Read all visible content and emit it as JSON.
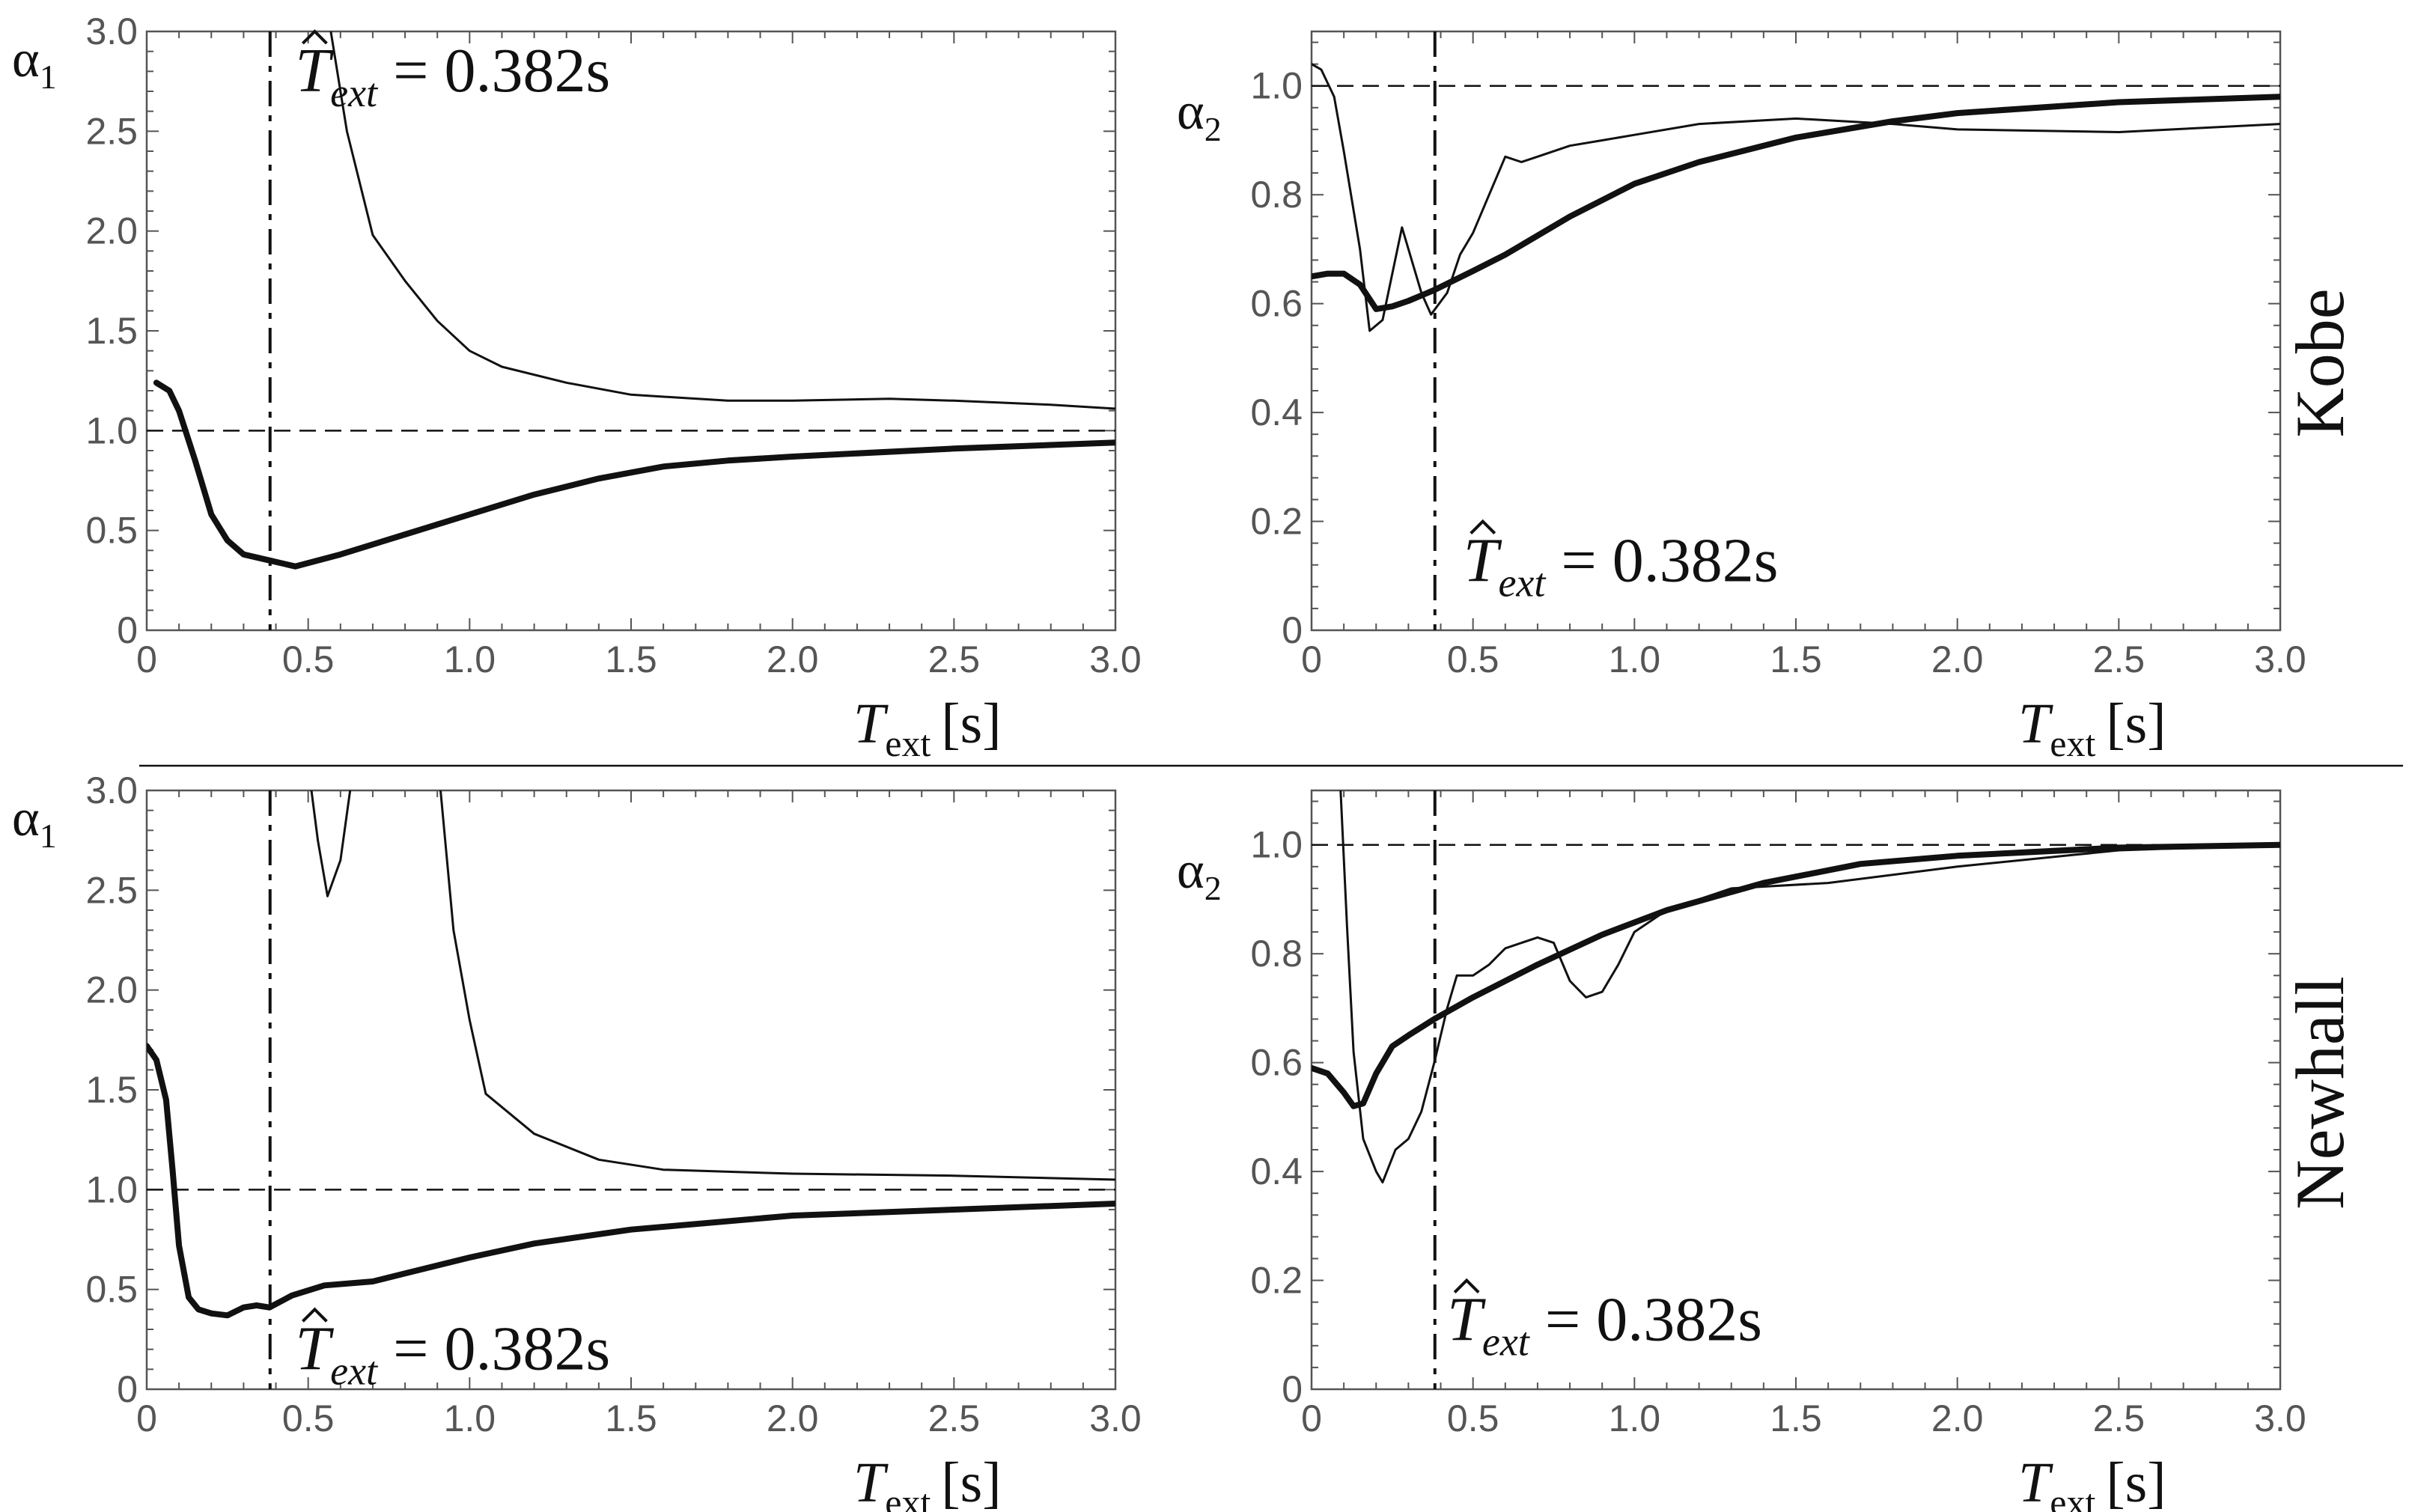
{
  "separator": true,
  "colors": {
    "curve": "#111111",
    "axis": "#555555",
    "reference": "#111111"
  },
  "rows": [
    {
      "label": "Kobe"
    },
    {
      "label": "Newhall"
    }
  ],
  "chart_data": [
    {
      "id": "kobe-alpha1",
      "type": "line",
      "row": "Kobe",
      "ylabel_sym": "α",
      "ylabel_sub": "1",
      "xlabel_sym": "T",
      "xlabel_sub": "ext",
      "xlabel_unit": "[s]",
      "xlim": [
        0,
        3.0
      ],
      "ylim": [
        0,
        3.0
      ],
      "xticks": [
        "0",
        "0.5",
        "1.0",
        "1.5",
        "2.0",
        "2.5",
        "3.0"
      ],
      "xtick_values": [
        0,
        0.5,
        1.0,
        1.5,
        2.0,
        2.5,
        3.0
      ],
      "yticks": [
        "0",
        "0.5",
        "1.0",
        "1.5",
        "2.0",
        "2.5",
        "3.0"
      ],
      "ytick_values": [
        0,
        0.5,
        1.0,
        1.5,
        2.0,
        2.5,
        3.0
      ],
      "hline": 1.0,
      "vline": 0.382,
      "annotation": {
        "sym": "T",
        "sub": "ext",
        "text": " = 0.382s",
        "anchor_x": 0.46,
        "anchor_y": 2.7
      },
      "series": [
        {
          "name": "thin",
          "width": 3,
          "x": [
            0.57,
            0.62,
            0.7,
            0.8,
            0.9,
            1.0,
            1.1,
            1.3,
            1.5,
            1.8,
            2.0,
            2.3,
            2.5,
            2.8,
            3.0
          ],
          "y": [
            3.0,
            2.5,
            1.98,
            1.75,
            1.55,
            1.4,
            1.32,
            1.24,
            1.18,
            1.15,
            1.15,
            1.16,
            1.15,
            1.13,
            1.11
          ]
        },
        {
          "name": "thick",
          "width": 8,
          "x": [
            0.03,
            0.07,
            0.1,
            0.15,
            0.2,
            0.25,
            0.3,
            0.38,
            0.46,
            0.6,
            0.8,
            1.0,
            1.2,
            1.4,
            1.6,
            1.8,
            2.0,
            2.5,
            3.0
          ],
          "y": [
            1.24,
            1.2,
            1.1,
            0.85,
            0.58,
            0.45,
            0.38,
            0.35,
            0.32,
            0.38,
            0.48,
            0.58,
            0.68,
            0.76,
            0.82,
            0.85,
            0.87,
            0.91,
            0.94
          ]
        }
      ]
    },
    {
      "id": "kobe-alpha2",
      "type": "line",
      "row": "Kobe",
      "ylabel_sym": "α",
      "ylabel_sub": "2",
      "xlabel_sym": "T",
      "xlabel_sub": "ext",
      "xlabel_unit": "[s]",
      "xlim": [
        0,
        3.0
      ],
      "ylim": [
        0,
        1.1
      ],
      "xticks": [
        "0",
        "0.5",
        "1.0",
        "1.5",
        "2.0",
        "2.5",
        "3.0"
      ],
      "xtick_values": [
        0,
        0.5,
        1.0,
        1.5,
        2.0,
        2.5,
        3.0
      ],
      "yticks": [
        "0",
        "0.2",
        "0.4",
        "0.6",
        "0.8",
        "1.0"
      ],
      "ytick_values": [
        0,
        0.2,
        0.4,
        0.6,
        0.8,
        1.0
      ],
      "hline": 1.0,
      "vline": 0.382,
      "annotation": {
        "sym": "T",
        "sub": "ext",
        "text": " = 0.382s",
        "anchor_x": 0.47,
        "anchor_y": 0.09
      },
      "series": [
        {
          "name": "thin",
          "width": 3,
          "x": [
            0.0,
            0.03,
            0.07,
            0.1,
            0.15,
            0.18,
            0.22,
            0.28,
            0.34,
            0.37,
            0.42,
            0.46,
            0.5,
            0.55,
            0.6,
            0.65,
            0.7,
            0.8,
            0.9,
            1.0,
            1.2,
            1.5,
            1.8,
            2.0,
            2.5,
            3.0
          ],
          "y": [
            1.04,
            1.03,
            0.98,
            0.88,
            0.7,
            0.55,
            0.57,
            0.74,
            0.62,
            0.58,
            0.62,
            0.69,
            0.73,
            0.8,
            0.87,
            0.86,
            0.87,
            0.89,
            0.9,
            0.91,
            0.93,
            0.94,
            0.93,
            0.92,
            0.915,
            0.93
          ]
        },
        {
          "name": "thick",
          "width": 8,
          "x": [
            0.0,
            0.05,
            0.1,
            0.15,
            0.2,
            0.25,
            0.3,
            0.38,
            0.5,
            0.6,
            0.8,
            1.0,
            1.2,
            1.5,
            1.8,
            2.0,
            2.5,
            3.0
          ],
          "y": [
            0.65,
            0.655,
            0.655,
            0.635,
            0.59,
            0.595,
            0.605,
            0.625,
            0.66,
            0.69,
            0.76,
            0.82,
            0.86,
            0.905,
            0.935,
            0.95,
            0.97,
            0.98
          ]
        }
      ]
    },
    {
      "id": "newhall-alpha1",
      "type": "line",
      "row": "Newhall",
      "ylabel_sym": "α",
      "ylabel_sub": "1",
      "xlabel_sym": "T",
      "xlabel_sub": "ext",
      "xlabel_unit": "[s]",
      "xlim": [
        0,
        3.0
      ],
      "ylim": [
        0,
        3.0
      ],
      "xticks": [
        "0",
        "0.5",
        "1.0",
        "1.5",
        "2.0",
        "2.5",
        "3.0"
      ],
      "xtick_values": [
        0,
        0.5,
        1.0,
        1.5,
        2.0,
        2.5,
        3.0
      ],
      "yticks": [
        "0",
        "0.5",
        "1.0",
        "1.5",
        "2.0",
        "2.5",
        "3.0"
      ],
      "ytick_values": [
        0,
        0.5,
        1.0,
        1.5,
        2.0,
        2.5,
        3.0
      ],
      "hline": 1.0,
      "vline": 0.382,
      "annotation": {
        "sym": "T",
        "sub": "ext",
        "text": " = 0.382s",
        "anchor_x": 0.46,
        "anchor_y": 0.1
      },
      "series": [
        {
          "name": "thin-left",
          "width": 3,
          "x": [
            0.51,
            0.53,
            0.56,
            0.6,
            0.63
          ],
          "y": [
            3.0,
            2.75,
            2.47,
            2.65,
            3.0
          ]
        },
        {
          "name": "thin-right",
          "width": 3,
          "x": [
            0.91,
            0.95,
            1.0,
            1.05,
            1.2,
            1.4,
            1.6,
            2.0,
            2.5,
            3.0
          ],
          "y": [
            3.0,
            2.3,
            1.85,
            1.48,
            1.28,
            1.15,
            1.1,
            1.08,
            1.07,
            1.05
          ]
        },
        {
          "name": "thick",
          "width": 8,
          "x": [
            0.0,
            0.03,
            0.06,
            0.08,
            0.1,
            0.13,
            0.16,
            0.2,
            0.25,
            0.3,
            0.34,
            0.38,
            0.45,
            0.55,
            0.7,
            0.8,
            1.0,
            1.2,
            1.5,
            2.0,
            2.5,
            3.0
          ],
          "y": [
            1.72,
            1.65,
            1.45,
            1.1,
            0.72,
            0.46,
            0.4,
            0.38,
            0.37,
            0.41,
            0.42,
            0.41,
            0.47,
            0.52,
            0.54,
            0.58,
            0.66,
            0.73,
            0.8,
            0.87,
            0.9,
            0.93
          ]
        }
      ]
    },
    {
      "id": "newhall-alpha2",
      "type": "line",
      "row": "Newhall",
      "ylabel_sym": "α",
      "ylabel_sub": "2",
      "xlabel_sym": "T",
      "xlabel_sub": "ext",
      "xlabel_unit": "[s]",
      "xlim": [
        0,
        3.0
      ],
      "ylim": [
        0,
        1.1
      ],
      "xticks": [
        "0",
        "0.5",
        "1.0",
        "1.5",
        "2.0",
        "2.5",
        "3.0"
      ],
      "xtick_values": [
        0,
        0.5,
        1.0,
        1.5,
        2.0,
        2.5,
        3.0
      ],
      "yticks": [
        "0",
        "0.2",
        "0.4",
        "0.6",
        "0.8",
        "1.0"
      ],
      "ytick_values": [
        0,
        0.2,
        0.4,
        0.6,
        0.8,
        1.0
      ],
      "hline": 1.0,
      "vline": 0.382,
      "annotation": {
        "sym": "T",
        "sub": "ext",
        "text": " = 0.382s",
        "anchor_x": 0.42,
        "anchor_y": 0.09
      },
      "series": [
        {
          "name": "thin",
          "width": 3,
          "x": [
            0.09,
            0.11,
            0.13,
            0.16,
            0.2,
            0.22,
            0.26,
            0.3,
            0.34,
            0.38,
            0.42,
            0.45,
            0.5,
            0.55,
            0.6,
            0.7,
            0.75,
            0.8,
            0.85,
            0.9,
            0.95,
            1.0,
            1.1,
            1.3,
            1.6,
            2.0,
            2.5,
            3.0
          ],
          "y": [
            1.1,
            0.85,
            0.62,
            0.46,
            0.4,
            0.38,
            0.44,
            0.46,
            0.51,
            0.6,
            0.7,
            0.76,
            0.76,
            0.78,
            0.81,
            0.83,
            0.82,
            0.75,
            0.72,
            0.73,
            0.78,
            0.84,
            0.88,
            0.92,
            0.93,
            0.96,
            0.99,
            1.0
          ]
        },
        {
          "name": "thick",
          "width": 8,
          "x": [
            0.0,
            0.05,
            0.1,
            0.13,
            0.16,
            0.2,
            0.25,
            0.3,
            0.38,
            0.5,
            0.7,
            0.9,
            1.1,
            1.4,
            1.7,
            2.0,
            2.5,
            3.0
          ],
          "y": [
            0.59,
            0.58,
            0.545,
            0.52,
            0.525,
            0.58,
            0.63,
            0.65,
            0.68,
            0.72,
            0.78,
            0.835,
            0.88,
            0.93,
            0.965,
            0.98,
            0.995,
            1.0
          ]
        }
      ]
    }
  ]
}
